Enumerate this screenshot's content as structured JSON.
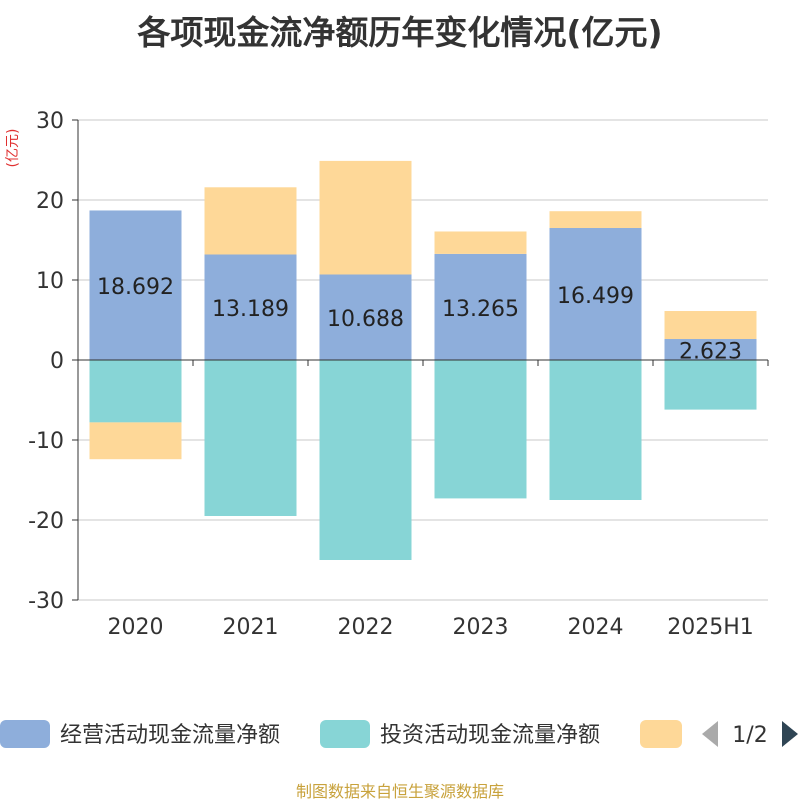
{
  "chart_data": {
    "type": "bar",
    "stacked": true,
    "title": "各项现金流净额历年变化情况(亿元)",
    "ylabel": "(亿元)",
    "ylim": [
      -30,
      30
    ],
    "yticks": [
      30,
      20,
      10,
      0,
      -10,
      -20,
      -30
    ],
    "categories": [
      "2020",
      "2021",
      "2022",
      "2023",
      "2024",
      "2025H1"
    ],
    "series": [
      {
        "name": "经营活动现金流量净额",
        "color": "#8eaedb",
        "values": [
          18.692,
          13.189,
          10.688,
          13.265,
          16.499,
          2.623
        ],
        "labels": [
          "18.692",
          "13.189",
          "10.688",
          "13.265",
          "16.499",
          "2.623"
        ]
      },
      {
        "name": "投资活动现金流量净额",
        "color": "#87d5d6",
        "values": [
          -7.8,
          -19.5,
          -25.0,
          -17.3,
          -17.5,
          -6.2
        ]
      },
      {
        "name": "",
        "color": "#fed898",
        "values": [
          -4.6,
          8.4,
          14.2,
          2.8,
          2.1,
          3.5
        ]
      }
    ],
    "grid": true,
    "legend": {
      "position": "bottom",
      "page": "1/2"
    }
  },
  "footer": {
    "source": "制图数据来自恒生聚源数据库"
  }
}
